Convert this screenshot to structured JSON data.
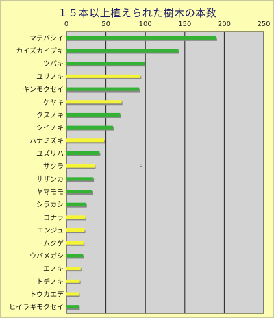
{
  "chart_data": {
    "type": "bar",
    "orientation": "horizontal",
    "title": "１５本以上植えられた樹木の本数",
    "xlabel": "",
    "ylabel": "",
    "xlim": [
      0,
      250
    ],
    "x_ticks": [
      "0",
      "50",
      "100",
      "150",
      "200",
      "250"
    ],
    "grid": true,
    "categories": [
      "マテバシイ",
      "カイズカイブキ",
      "ツバキ",
      "ユリノキ",
      "キンモクセイ",
      "ケヤキ",
      "クスノキ",
      "シイノキ",
      "ハナミズキ",
      "ユズリハ",
      "サクラ",
      "サザンカ",
      "ヤマモモ",
      "シラカシ",
      "コナラ",
      "エンジュ",
      "ムクゲ",
      "ウバメガシ",
      "エノキ",
      "トチノキ",
      "トウカエデ",
      "ヒイラギモクセイ"
    ],
    "values": [
      190,
      142,
      99,
      94,
      92,
      70,
      68,
      59,
      48,
      42,
      36,
      34,
      33,
      25,
      24,
      23,
      22,
      21,
      18,
      17,
      16,
      16
    ],
    "bar_colors": [
      "green",
      "green",
      "green",
      "yellow",
      "green",
      "yellow",
      "green",
      "green",
      "yellow",
      "green",
      "yellow",
      "green",
      "green",
      "green",
      "yellow",
      "yellow",
      "yellow",
      "green",
      "yellow",
      "yellow",
      "yellow",
      "green"
    ],
    "colors": {
      "green": "#33b233",
      "yellow": "#f5f535",
      "plot_bg": "#d3d3d3",
      "page_bg": "#fdfdb4"
    }
  },
  "annotation": "c"
}
